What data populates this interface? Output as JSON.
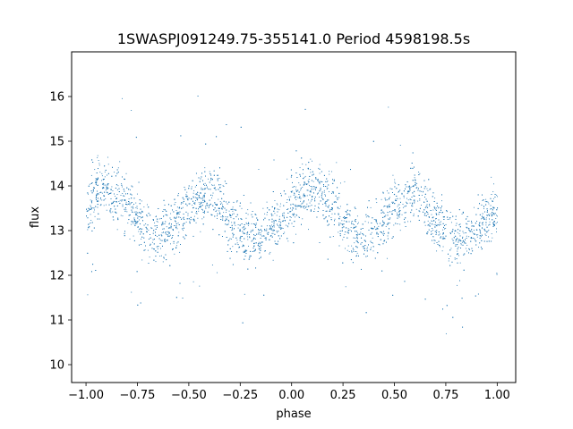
{
  "chart_data": {
    "type": "scatter",
    "title": "1SWASPJ091249.75-355141.0 Period 4598198.5s",
    "xlabel": "phase",
    "ylabel": "flux",
    "xlim": [
      -1.07,
      1.09
    ],
    "ylim": [
      9.6,
      17.0
    ],
    "xticks": [
      -1.0,
      -0.75,
      -0.5,
      -0.25,
      0.0,
      0.25,
      0.5,
      0.75,
      1.0
    ],
    "xtick_labels": [
      "−1.00",
      "−0.75",
      "−0.50",
      "−0.25",
      "0.00",
      "0.25",
      "0.50",
      "0.75",
      "1.00"
    ],
    "yticks": [
      10,
      11,
      12,
      13,
      14,
      15,
      16
    ],
    "ytick_labels": [
      "10",
      "11",
      "12",
      "13",
      "14",
      "15",
      "16"
    ],
    "grid": false,
    "legend": "none",
    "marker_color": "#1f77b4",
    "series": [
      {
        "x": [
          -1.0,
          -0.95,
          -0.9,
          -0.85,
          -0.8,
          -0.75,
          -0.7,
          -0.65,
          -0.6,
          -0.55,
          -0.5,
          -0.45,
          -0.4,
          -0.35,
          -0.3,
          -0.25,
          -0.2,
          -0.15,
          -0.1,
          -0.05,
          0.0,
          0.05,
          0.1,
          0.15,
          0.2,
          0.25,
          0.3,
          0.35,
          0.4,
          0.45,
          0.5,
          0.55,
          0.6,
          0.65,
          0.7,
          0.75,
          0.8,
          0.85,
          0.9,
          0.95,
          1.0
        ],
        "y": [
          13.5,
          13.9,
          14.0,
          13.8,
          13.6,
          13.3,
          12.9,
          12.8,
          13.0,
          13.3,
          13.6,
          13.7,
          13.9,
          13.6,
          13.2,
          13.0,
          12.8,
          12.9,
          13.1,
          13.3,
          13.5,
          13.9,
          14.0,
          13.8,
          13.6,
          13.3,
          12.9,
          12.8,
          13.0,
          13.3,
          13.6,
          13.7,
          13.9,
          13.6,
          13.2,
          13.0,
          12.8,
          12.9,
          13.1,
          13.3,
          13.5
        ]
      }
    ]
  }
}
